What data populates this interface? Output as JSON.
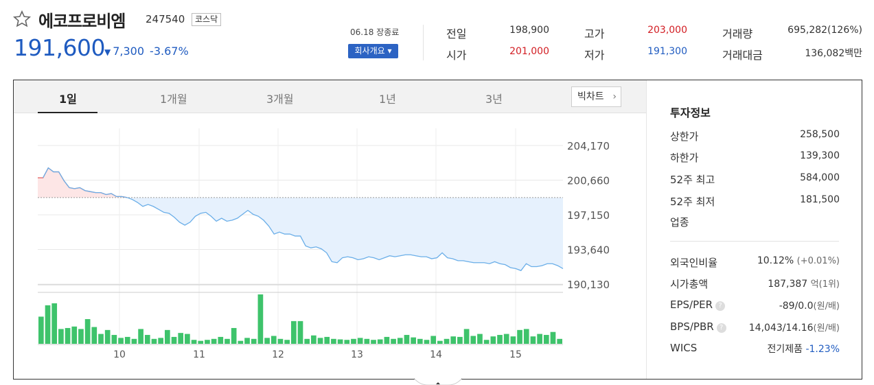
{
  "header": {
    "name": "에코프로비엠",
    "code": "247540",
    "market": "코스닥",
    "price": "191,600",
    "change_icon": "triangle-down-icon",
    "change": "7,300",
    "change_pct": "-3.67%",
    "close_date": "06.18 장종료",
    "company_btn": "회사개요 ▾"
  },
  "quotes": {
    "prev_label": "전일",
    "prev": "198,900",
    "open_label": "시가",
    "open": "201,000",
    "high_label": "고가",
    "high": "203,000",
    "low_label": "저가",
    "low": "191,300",
    "volume_label": "거래량",
    "volume": "695,282(126%)",
    "amount_label": "거래대금",
    "amount": "136,082백만"
  },
  "tabs": [
    "1일",
    "1개월",
    "3개월",
    "1년",
    "3년"
  ],
  "big_chart_btn": "빅차트",
  "chart_data": {
    "type": "line",
    "y_ticks": [
      "204,170",
      "200,660",
      "197,150",
      "193,640",
      "190,130"
    ],
    "ylim": [
      190130,
      204170
    ],
    "x_ticks": [
      "10",
      "11",
      "12",
      "13",
      "14",
      "15"
    ],
    "baseline": 198900,
    "price": [
      200900,
      200900,
      201900,
      201500,
      201500,
      200600,
      199900,
      199800,
      199900,
      199600,
      199500,
      199400,
      199400,
      199200,
      199300,
      199000,
      199000,
      198900,
      198700,
      198400,
      198000,
      198200,
      198000,
      197700,
      197400,
      197300,
      196900,
      196400,
      196100,
      196400,
      197000,
      197300,
      197400,
      197000,
      196500,
      196800,
      196500,
      196600,
      196800,
      197200,
      197600,
      197200,
      197000,
      196600,
      196000,
      195200,
      195400,
      195200,
      195200,
      195000,
      195000,
      194000,
      193800,
      193900,
      193700,
      193300,
      192400,
      192300,
      192800,
      192900,
      192800,
      192600,
      192700,
      192900,
      192800,
      192600,
      192800,
      193000,
      192900,
      193000,
      193100,
      193100,
      193000,
      192900,
      192900,
      192700,
      192800,
      193300,
      192800,
      192700,
      192500,
      192500,
      192400,
      192300,
      192300,
      192300,
      192200,
      192400,
      192200,
      192100,
      191800,
      191700,
      191500,
      192200,
      191900,
      191900,
      192000,
      192200,
      192200,
      192000,
      191700
    ],
    "volume": [
      55,
      78,
      82,
      30,
      32,
      35,
      30,
      50,
      34,
      20,
      28,
      18,
      12,
      14,
      10,
      30,
      18,
      10,
      12,
      28,
      14,
      22,
      20,
      8,
      6,
      8,
      10,
      14,
      10,
      32,
      6,
      12,
      10,
      100,
      12,
      16,
      10,
      8,
      46,
      46,
      10,
      17,
      12,
      14,
      10,
      9,
      8,
      10,
      12,
      10,
      8,
      9,
      14,
      10,
      12,
      18,
      13,
      10,
      8,
      16,
      6,
      10,
      15,
      14,
      30,
      16,
      20,
      8,
      15,
      18,
      20,
      15,
      28,
      30,
      15,
      20,
      18,
      24,
      10
    ],
    "volume_ylim": [
      0,
      100
    ]
  },
  "invest": {
    "title": "투자정보",
    "upper_label": "상한가",
    "upper": "258,500",
    "lower_label": "하한가",
    "lower": "139,300",
    "w52h_label": "52주 최고",
    "w52h": "584,000",
    "w52l_label": "52주 최저",
    "w52l": "181,500",
    "industry_label": "업종",
    "foreign_label": "외국인비율",
    "foreign": "10.12%",
    "foreign_chg": "(+0.01%)",
    "mcap_label": "시가총액",
    "mcap": "187,387",
    "mcap_unit": "억(1위)",
    "eps_label": "EPS/PER",
    "eps": "-89/0.0",
    "eps_unit": "(원/배)",
    "bps_label": "BPS/PBR",
    "bps": "14,043/14.16",
    "bps_unit": "(원/배)",
    "wics_label": "WICS",
    "wics": "전기제품",
    "wics_chg": "-1.23%"
  },
  "colors": {
    "up": "#d21d23",
    "down": "#1f5bc0",
    "volume": "#3ec36b"
  }
}
